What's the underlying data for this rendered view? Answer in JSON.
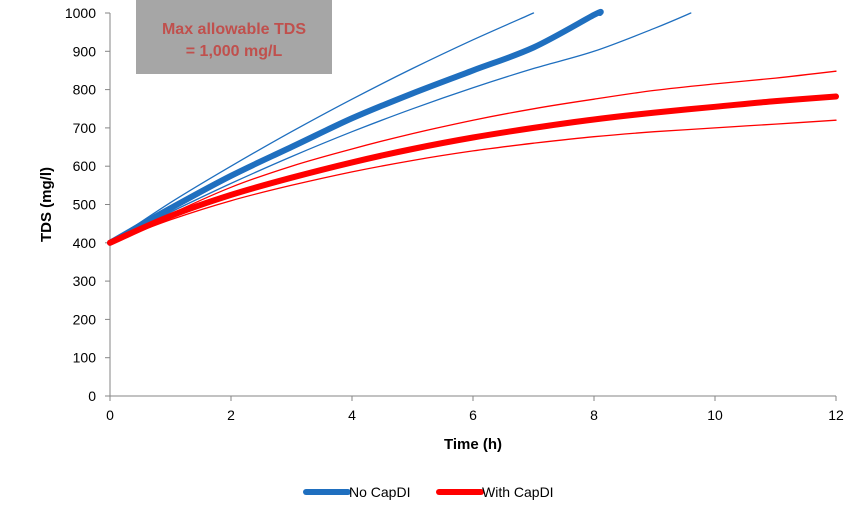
{
  "chart_data": {
    "type": "line",
    "xlabel": "Time (h)",
    "ylabel": "TDS (mg/l)",
    "xlim": [
      0,
      12
    ],
    "ylim": [
      0,
      1000
    ],
    "xticks": [
      0,
      2,
      4,
      6,
      8,
      10,
      12
    ],
    "yticks": [
      0,
      100,
      200,
      300,
      400,
      500,
      600,
      700,
      800,
      900,
      1000
    ],
    "grid": false,
    "legend_position": "bottom",
    "annotation": {
      "lines": [
        "Max allowable TDS",
        "= 1,000 mg/L"
      ],
      "background": "#a6a6a6",
      "text_color": "#c0504d"
    },
    "series": [
      {
        "name": "No CapDI",
        "color": "#1f6fbf",
        "main": true,
        "x": [
          0,
          1,
          2,
          3,
          4,
          5,
          6,
          7,
          8,
          8.1
        ],
        "y": [
          400,
          490,
          575,
          650,
          725,
          790,
          850,
          910,
          995,
          1000
        ]
      },
      {
        "name": "",
        "color": "#1f6fbf",
        "main": false,
        "x": [
          0,
          1,
          2,
          3,
          4,
          5,
          6,
          7
        ],
        "y": [
          400,
          505,
          600,
          690,
          775,
          855,
          930,
          1000
        ]
      },
      {
        "name": "",
        "color": "#1f6fbf",
        "main": false,
        "x": [
          0,
          1,
          2,
          3,
          4,
          5,
          6,
          7,
          8,
          9,
          9.6
        ],
        "y": [
          400,
          480,
          555,
          625,
          690,
          750,
          805,
          855,
          900,
          960,
          1000
        ]
      },
      {
        "name": "With CapDI",
        "color": "#ff0000",
        "main": true,
        "x": [
          0,
          1,
          2,
          3,
          4,
          5,
          6,
          7,
          8,
          9,
          10,
          11,
          12
        ],
        "y": [
          400,
          470,
          525,
          570,
          610,
          645,
          675,
          700,
          722,
          740,
          755,
          770,
          782
        ]
      },
      {
        "name": "",
        "color": "#ff0000",
        "main": false,
        "x": [
          0,
          1,
          2,
          3,
          4,
          5,
          6,
          7,
          8,
          9,
          10,
          11,
          12
        ],
        "y": [
          400,
          475,
          545,
          600,
          645,
          685,
          720,
          750,
          775,
          798,
          815,
          830,
          848
        ]
      },
      {
        "name": "",
        "color": "#ff0000",
        "main": false,
        "x": [
          0,
          1,
          2,
          3,
          4,
          5,
          6,
          7,
          8,
          9,
          10,
          11,
          12
        ],
        "y": [
          400,
          460,
          510,
          550,
          585,
          615,
          640,
          660,
          677,
          690,
          700,
          710,
          720
        ]
      }
    ]
  }
}
